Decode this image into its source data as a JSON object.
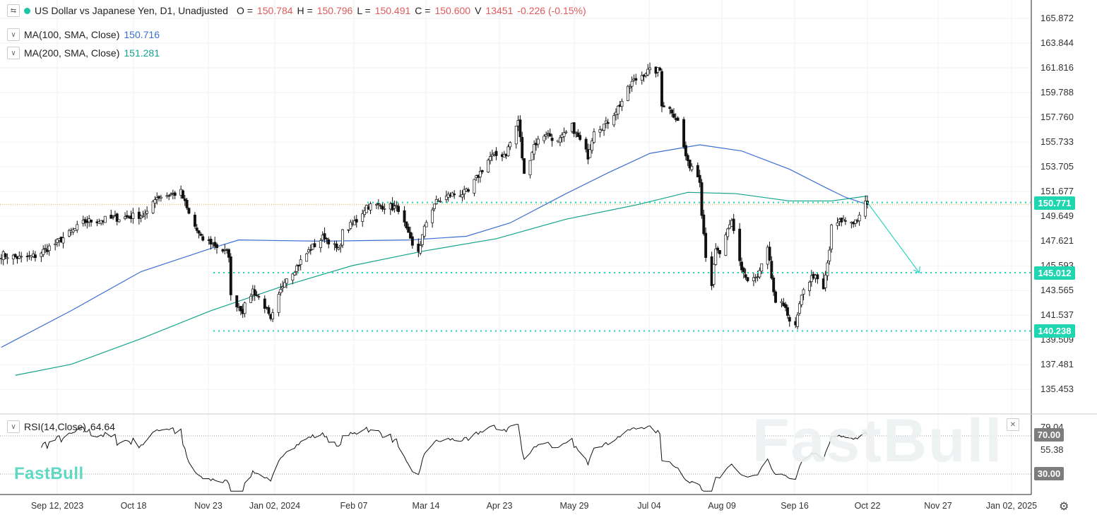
{
  "header": {
    "symbol_title": "US Dollar vs Japanese Yen, D1, Unadjusted",
    "open_label": "O =",
    "open": "150.784",
    "high_label": "H =",
    "high": "150.796",
    "low_label": "L =",
    "low": "150.491",
    "close_label": "C =",
    "close": "150.600",
    "volume_label": "V",
    "volume": "13451",
    "change": "-0.226 (-0.15%)",
    "status_color": "#1ec4a4",
    "toggle_icon": "collapse-arrows-icon"
  },
  "indicators": [
    {
      "label": "MA(100, SMA, Close)",
      "value": "150.716",
      "color": "#3b6fd4"
    },
    {
      "label": "MA(200, SMA, Close)",
      "value": "151.281",
      "color": "#14a38b"
    }
  ],
  "rsi": {
    "label": "RSI(14,Close)",
    "value": "64.64",
    "levels": [
      "70.00",
      "30.00"
    ],
    "ticks": [
      "79.04",
      "55.38"
    ]
  },
  "price_axis": {
    "ticks": [
      "165.872",
      "163.844",
      "161.816",
      "159.788",
      "157.760",
      "155.733",
      "153.705",
      "151.677",
      "149.649",
      "147.621",
      "145.593",
      "143.565",
      "141.537",
      "139.509",
      "137.481",
      "135.453"
    ]
  },
  "levels": [
    {
      "value": "150.771"
    },
    {
      "value": "145.012"
    },
    {
      "value": "140.238"
    }
  ],
  "level_color": "#1ed6b0",
  "x_axis": {
    "ticks": [
      "Sep 12, 2023",
      "Oct 18",
      "Nov 23",
      "Jan 02, 2024",
      "Feb 07",
      "Mar 14",
      "Apr 23",
      "May 29",
      "Jul 04",
      "Aug 09",
      "Sep 16",
      "Oct 22",
      "Nov 27",
      "Jan 02, 2025"
    ]
  },
  "branding": {
    "logo": "FastBull",
    "watermark": "FastBull"
  },
  "chart_data": {
    "type": "candlestick",
    "price_close_anchors": [
      [
        "2023-08-15",
        146.5
      ],
      [
        "2023-08-25",
        146.2
      ],
      [
        "2023-09-01",
        146.4
      ],
      [
        "2023-09-12",
        147.5
      ],
      [
        "2023-09-26",
        149.2
      ],
      [
        "2023-10-13",
        149.5
      ],
      [
        "2023-10-27",
        149.8
      ],
      [
        "2023-10-31",
        151.2
      ],
      [
        "2023-11-13",
        151.6
      ],
      [
        "2023-11-17",
        149.8
      ],
      [
        "2023-11-23",
        147.8
      ],
      [
        "2023-11-28",
        147.5
      ],
      [
        "2023-12-07",
        146.5
      ],
      [
        "2023-12-08",
        143.0
      ],
      [
        "2023-12-14",
        141.9
      ],
      [
        "2023-12-19",
        143.6
      ],
      [
        "2023-12-25",
        142.3
      ],
      [
        "2023-12-28",
        141.0
      ],
      [
        "2024-01-04",
        144.5
      ],
      [
        "2024-01-10",
        145.5
      ],
      [
        "2024-01-17",
        147.0
      ],
      [
        "2024-01-24",
        148.0
      ],
      [
        "2024-01-31",
        146.8
      ],
      [
        "2024-02-02",
        148.3
      ],
      [
        "2024-02-09",
        149.3
      ],
      [
        "2024-02-14",
        150.5
      ],
      [
        "2024-02-23",
        150.5
      ],
      [
        "2024-03-01",
        150.3
      ],
      [
        "2024-03-08",
        147.1
      ],
      [
        "2024-03-11",
        146.8
      ],
      [
        "2024-03-15",
        149.2
      ],
      [
        "2024-03-19",
        150.7
      ],
      [
        "2024-03-27",
        151.4
      ],
      [
        "2024-04-05",
        151.6
      ],
      [
        "2024-04-10",
        153.0
      ],
      [
        "2024-04-16",
        154.5
      ],
      [
        "2024-04-24",
        154.8
      ],
      [
        "2024-04-29",
        157.0
      ],
      [
        "2024-04-30",
        157.5
      ],
      [
        "2024-05-03",
        153.0
      ],
      [
        "2024-05-08",
        155.5
      ],
      [
        "2024-05-14",
        156.5
      ],
      [
        "2024-05-20",
        155.7
      ],
      [
        "2024-05-27",
        157.0
      ],
      [
        "2024-06-04",
        154.6
      ],
      [
        "2024-06-07",
        156.8
      ],
      [
        "2024-06-13",
        157.2
      ],
      [
        "2024-06-20",
        158.8
      ],
      [
        "2024-06-26",
        160.6
      ],
      [
        "2024-07-03",
        161.5
      ],
      [
        "2024-07-10",
        161.6
      ],
      [
        "2024-07-11",
        158.9
      ],
      [
        "2024-07-16",
        158.3
      ],
      [
        "2024-07-19",
        157.4
      ],
      [
        "2024-07-24",
        153.9
      ],
      [
        "2024-07-26",
        153.8
      ],
      [
        "2024-07-30",
        152.7
      ],
      [
        "2024-07-31",
        150.0
      ],
      [
        "2024-08-02",
        146.5
      ],
      [
        "2024-08-05",
        144.1
      ],
      [
        "2024-08-07",
        146.8
      ],
      [
        "2024-08-09",
        146.6
      ],
      [
        "2024-08-15",
        149.2
      ],
      [
        "2024-08-20",
        145.3
      ],
      [
        "2024-08-23",
        144.3
      ],
      [
        "2024-08-28",
        144.6
      ],
      [
        "2024-09-02",
        146.9
      ],
      [
        "2024-09-06",
        142.3
      ],
      [
        "2024-09-11",
        142.4
      ],
      [
        "2024-09-13",
        140.8
      ],
      [
        "2024-09-16",
        140.6
      ],
      [
        "2024-09-18",
        142.2
      ],
      [
        "2024-09-20",
        143.8
      ],
      [
        "2024-09-25",
        144.8
      ],
      [
        "2024-09-30",
        143.6
      ],
      [
        "2024-10-03",
        146.9
      ],
      [
        "2024-10-04",
        148.7
      ],
      [
        "2024-10-09",
        149.3
      ],
      [
        "2024-10-15",
        149.2
      ],
      [
        "2024-10-18",
        149.5
      ],
      [
        "2024-10-21",
        150.7
      ],
      [
        "2024-10-22",
        150.6
      ]
    ],
    "ma100": [
      [
        "2023-08-15",
        138.9
      ],
      [
        "2023-09-19",
        141.9
      ],
      [
        "2023-10-24",
        145.1
      ],
      [
        "2023-11-28",
        147.0
      ],
      [
        "2023-12-12",
        147.7
      ],
      [
        "2024-01-22",
        147.6
      ],
      [
        "2024-03-07",
        147.7
      ],
      [
        "2024-04-04",
        148.0
      ],
      [
        "2024-04-26",
        149.1
      ],
      [
        "2024-05-24",
        151.5
      ],
      [
        "2024-06-14",
        153.2
      ],
      [
        "2024-07-05",
        154.8
      ],
      [
        "2024-07-30",
        155.5
      ],
      [
        "2024-08-20",
        155.0
      ],
      [
        "2024-09-13",
        153.5
      ],
      [
        "2024-10-01",
        152.0
      ],
      [
        "2024-10-11",
        151.2
      ],
      [
        "2024-10-22",
        150.6
      ]
    ],
    "ma200": [
      [
        "2023-08-22",
        136.6
      ],
      [
        "2023-09-19",
        137.5
      ],
      [
        "2023-10-24",
        139.6
      ],
      [
        "2023-11-28",
        141.9
      ],
      [
        "2024-01-03",
        143.9
      ],
      [
        "2024-02-07",
        145.6
      ],
      [
        "2024-03-14",
        146.8
      ],
      [
        "2024-04-19",
        147.8
      ],
      [
        "2024-05-24",
        149.4
      ],
      [
        "2024-06-29",
        150.6
      ],
      [
        "2024-07-24",
        151.6
      ],
      [
        "2024-08-17",
        151.5
      ],
      [
        "2024-09-13",
        150.9
      ],
      [
        "2024-10-04",
        150.9
      ],
      [
        "2024-10-22",
        151.3
      ]
    ],
    "projection": {
      "from": [
        "2024-10-22",
        150.771
      ],
      "to": [
        "2024-11-17",
        145.012
      ]
    },
    "ylim": [
      134.5,
      167.0
    ],
    "up_color": "#ffffff",
    "down_color": "#111111"
  }
}
